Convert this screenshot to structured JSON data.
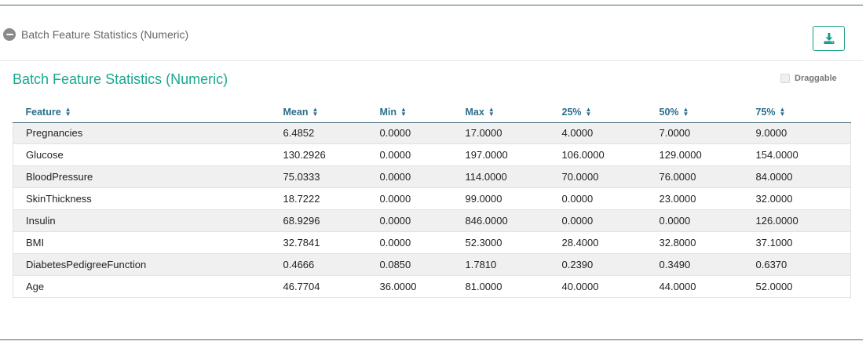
{
  "section": {
    "title": "Batch Feature Statistics (Numeric)"
  },
  "panel": {
    "title": "Batch Feature Statistics (Numeric)",
    "draggable_label": "Draggable"
  },
  "table": {
    "columns": [
      "Feature",
      "Mean",
      "Min",
      "Max",
      "25%",
      "50%",
      "75%"
    ],
    "rows": [
      [
        "Pregnancies",
        "6.4852",
        "0.0000",
        "17.0000",
        "4.0000",
        "7.0000",
        "9.0000"
      ],
      [
        "Glucose",
        "130.2926",
        "0.0000",
        "197.0000",
        "106.0000",
        "129.0000",
        "154.0000"
      ],
      [
        "BloodPressure",
        "75.0333",
        "0.0000",
        "114.0000",
        "70.0000",
        "76.0000",
        "84.0000"
      ],
      [
        "SkinThickness",
        "18.7222",
        "0.0000",
        "99.0000",
        "0.0000",
        "23.0000",
        "32.0000"
      ],
      [
        "Insulin",
        "68.9296",
        "0.0000",
        "846.0000",
        "0.0000",
        "0.0000",
        "126.0000"
      ],
      [
        "BMI",
        "32.7841",
        "0.0000",
        "52.3000",
        "28.4000",
        "32.8000",
        "37.1000"
      ],
      [
        "DiabetesPedigreeFunction",
        "0.4666",
        "0.0850",
        "1.7810",
        "0.2390",
        "0.3490",
        "0.6370"
      ],
      [
        "Age",
        "46.7704",
        "36.0000",
        "81.0000",
        "40.0000",
        "44.0000",
        "52.0000"
      ]
    ]
  },
  "colors": {
    "accent": "#1aa88f",
    "header_text": "#2a6f8a",
    "rule": "#3f6a78"
  },
  "icons": {
    "collapse": "minus-circle-icon",
    "download": "download-icon",
    "sort": "sort-icon"
  }
}
